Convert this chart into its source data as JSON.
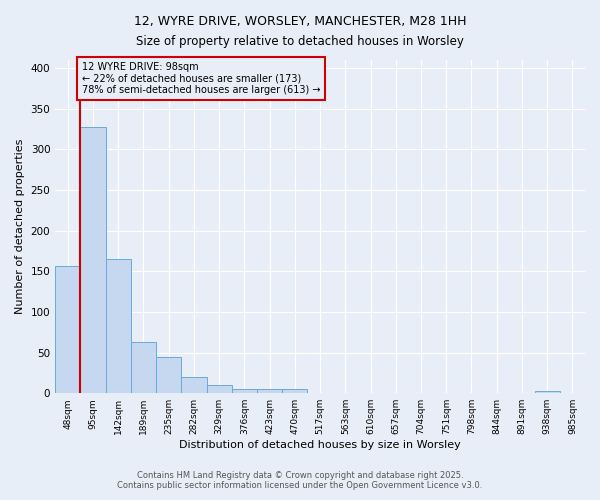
{
  "title_line1": "12, WYRE DRIVE, WORSLEY, MANCHESTER, M28 1HH",
  "title_line2": "Size of property relative to detached houses in Worsley",
  "xlabel": "Distribution of detached houses by size in Worsley",
  "ylabel": "Number of detached properties",
  "bin_labels": [
    "48sqm",
    "95sqm",
    "142sqm",
    "189sqm",
    "235sqm",
    "282sqm",
    "329sqm",
    "376sqm",
    "423sqm",
    "470sqm",
    "517sqm",
    "563sqm",
    "610sqm",
    "657sqm",
    "704sqm",
    "751sqm",
    "798sqm",
    "844sqm",
    "891sqm",
    "938sqm",
    "985sqm"
  ],
  "bar_heights": [
    157,
    328,
    165,
    63,
    44,
    20,
    10,
    5,
    5,
    5,
    0,
    0,
    0,
    0,
    0,
    0,
    0,
    0,
    0,
    3,
    0
  ],
  "bar_color": "#c5d8f0",
  "bar_edge_color": "#6aaad4",
  "property_line_x": 1,
  "property_line_color": "#cc0000",
  "ylim": [
    0,
    410
  ],
  "yticks": [
    0,
    50,
    100,
    150,
    200,
    250,
    300,
    350,
    400
  ],
  "annotation_text": "12 WYRE DRIVE: 98sqm\n← 22% of detached houses are smaller (173)\n78% of semi-detached houses are larger (613) →",
  "annotation_box_color": "#cc0000",
  "footer_line1": "Contains HM Land Registry data © Crown copyright and database right 2025.",
  "footer_line2": "Contains public sector information licensed under the Open Government Licence v3.0.",
  "background_color": "#e8eef8",
  "grid_color": "#ffffff",
  "figsize": [
    6.0,
    5.0
  ],
  "dpi": 100
}
